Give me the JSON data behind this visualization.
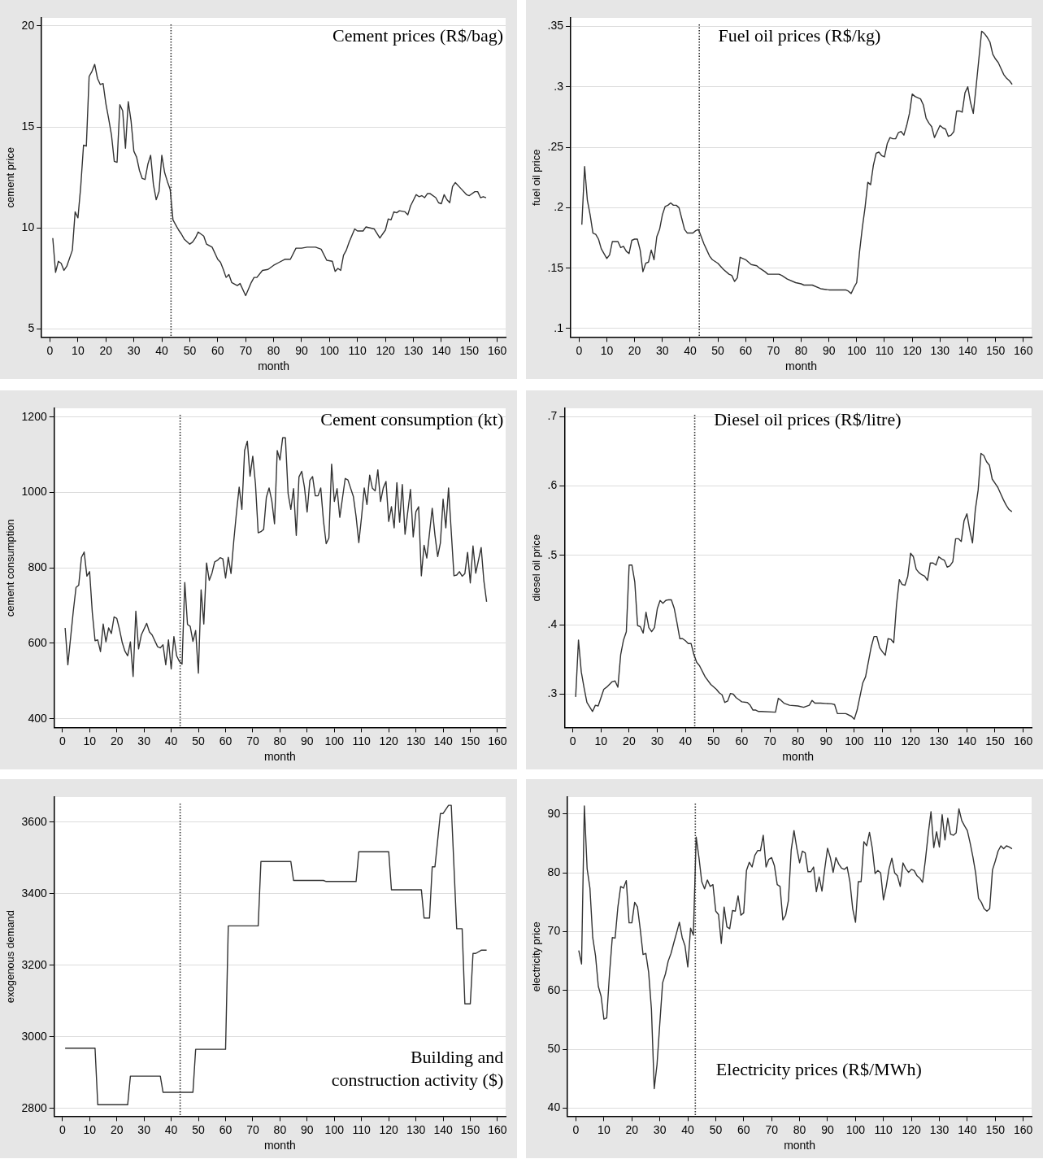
{
  "chart_data": [
    {
      "type": "line",
      "xlabel": "month",
      "ylabel": "cement price",
      "annotations": [
        "Cement prices (R$/bag)"
      ],
      "color": "#333333",
      "marker": "none",
      "grid": "y",
      "xlim": [
        -3,
        163
      ],
      "ylim": [
        4.6,
        20.4
      ],
      "xticks": [
        0,
        10,
        20,
        30,
        40,
        50,
        60,
        70,
        80,
        90,
        100,
        110,
        120,
        130,
        140,
        150,
        160
      ],
      "yticks": [
        5,
        10,
        15,
        20
      ],
      "ref_lines": [
        {
          "axis": "x",
          "value": 43.3,
          "line_style": "dotted"
        }
      ],
      "x": [
        1,
        2,
        3,
        4,
        5,
        6,
        8,
        9,
        10,
        11,
        12,
        13,
        14,
        15,
        16,
        17,
        18,
        19,
        20,
        21,
        22,
        23,
        24,
        25,
        26,
        27,
        28,
        29,
        30,
        31,
        32,
        33,
        34,
        35,
        36,
        37,
        38,
        39,
        40,
        41,
        42,
        43,
        44,
        45,
        46,
        47,
        48,
        50,
        51,
        52,
        53,
        55,
        56,
        58,
        60,
        61,
        62,
        63,
        64,
        65,
        67,
        68,
        70,
        72,
        73,
        74,
        76,
        78,
        80,
        82,
        84,
        86,
        88,
        90,
        92,
        95,
        97,
        99,
        101,
        102,
        103,
        104,
        105,
        106,
        107,
        109,
        110,
        112,
        113,
        116,
        118,
        120,
        121,
        122,
        123,
        124,
        125,
        127,
        128,
        129,
        131,
        132,
        133,
        134,
        135,
        136,
        138,
        139,
        140,
        141,
        142,
        143,
        144,
        145,
        147,
        149,
        150,
        152,
        153,
        154,
        155,
        156
      ],
      "values": [
        9.5,
        7.8,
        8.35,
        8.25,
        7.9,
        8.1,
        8.9,
        10.8,
        10.5,
        12.05,
        14.1,
        14.05,
        17.5,
        17.75,
        18.1,
        17.4,
        17.1,
        17.15,
        16.15,
        15.4,
        14.6,
        13.3,
        13.25,
        16.1,
        15.8,
        13.95,
        16.25,
        15.3,
        13.8,
        13.5,
        12.85,
        12.45,
        12.4,
        13.15,
        13.6,
        12.15,
        11.4,
        11.8,
        13.6,
        12.75,
        12.3,
        11.9,
        10.4,
        10.15,
        9.9,
        9.7,
        9.45,
        9.2,
        9.3,
        9.5,
        9.8,
        9.6,
        9.2,
        9.05,
        8.45,
        8.3,
        7.95,
        7.55,
        7.7,
        7.3,
        7.15,
        7.25,
        6.65,
        7.3,
        7.55,
        7.55,
        7.9,
        7.95,
        8.15,
        8.3,
        8.45,
        8.45,
        9.0,
        9.0,
        9.05,
        9.05,
        8.95,
        8.4,
        8.35,
        7.85,
        8.0,
        7.9,
        8.65,
        8.9,
        9.3,
        9.95,
        9.85,
        9.85,
        10.05,
        9.95,
        9.5,
        9.9,
        10.45,
        10.4,
        10.8,
        10.75,
        10.85,
        10.8,
        10.65,
        11.1,
        11.65,
        11.55,
        11.6,
        11.5,
        11.7,
        11.7,
        11.5,
        11.25,
        11.2,
        11.65,
        11.4,
        11.25,
        12.05,
        12.25,
        11.95,
        11.65,
        11.6,
        11.8,
        11.8,
        11.5,
        11.55,
        11.5
      ]
    },
    {
      "type": "line",
      "xlabel": "month",
      "ylabel": "fuel oil price",
      "annotations": [
        "Fuel oil prices (R$/kg)"
      ],
      "color": "#333333",
      "marker": "none",
      "grid": "y",
      "xlim": [
        -3,
        163
      ],
      "ylim": [
        0.093,
        0.357
      ],
      "xticks": [
        0,
        10,
        20,
        30,
        40,
        50,
        60,
        70,
        80,
        90,
        100,
        110,
        120,
        130,
        140,
        150,
        160
      ],
      "yticks": [
        {
          "value": 0.1,
          "label": ".1"
        },
        {
          "value": 0.15,
          "label": ".15"
        },
        {
          "value": 0.2,
          "label": ".2"
        },
        {
          "value": 0.25,
          "label": ".25"
        },
        {
          "value": 0.3,
          "label": ".3"
        },
        {
          "value": 0.35,
          "label": ".35"
        }
      ],
      "ref_lines": [
        {
          "axis": "x",
          "value": 43.3,
          "line_style": "dotted"
        }
      ],
      "x": [
        1,
        2,
        3,
        4,
        5,
        6,
        7,
        8,
        9,
        10,
        11,
        12,
        13,
        14,
        15,
        16,
        17,
        18,
        19,
        20,
        21,
        22,
        23,
        24,
        25,
        26,
        27,
        28,
        29,
        30,
        31,
        32,
        33,
        34,
        35,
        36,
        37,
        38,
        39,
        40,
        41,
        42,
        43,
        44,
        45,
        46,
        47,
        48,
        50,
        52,
        54,
        55,
        56,
        57,
        58,
        59,
        60,
        61,
        62,
        64,
        65,
        67,
        68,
        72,
        73,
        75,
        78,
        80,
        81,
        84,
        87,
        90,
        95,
        96,
        97,
        98,
        99,
        100,
        101,
        102,
        103,
        104,
        105,
        106,
        107,
        108,
        109,
        110,
        111,
        112,
        113,
        114,
        115,
        116,
        117,
        118,
        119,
        120,
        121,
        122,
        123,
        124,
        125,
        126,
        127,
        128,
        129,
        130,
        131,
        132,
        133,
        134,
        135,
        136,
        137,
        138,
        139,
        140,
        141,
        142,
        143,
        144,
        145,
        146,
        147,
        148,
        149,
        150,
        151,
        152,
        153,
        154,
        155,
        156
      ],
      "values": [
        0.186,
        0.234,
        0.206,
        0.194,
        0.179,
        0.178,
        0.174,
        0.166,
        0.162,
        0.158,
        0.161,
        0.172,
        0.172,
        0.172,
        0.167,
        0.168,
        0.164,
        0.162,
        0.173,
        0.174,
        0.174,
        0.165,
        0.147,
        0.154,
        0.155,
        0.165,
        0.157,
        0.176,
        0.182,
        0.194,
        0.201,
        0.202,
        0.204,
        0.202,
        0.202,
        0.2,
        0.191,
        0.182,
        0.179,
        0.179,
        0.179,
        0.181,
        0.182,
        0.176,
        0.17,
        0.165,
        0.16,
        0.157,
        0.154,
        0.149,
        0.145,
        0.144,
        0.139,
        0.142,
        0.159,
        0.158,
        0.157,
        0.155,
        0.153,
        0.152,
        0.15,
        0.147,
        0.145,
        0.145,
        0.144,
        0.141,
        0.138,
        0.137,
        0.136,
        0.136,
        0.133,
        0.132,
        0.132,
        0.132,
        0.131,
        0.129,
        0.134,
        0.138,
        0.163,
        0.183,
        0.2,
        0.221,
        0.219,
        0.235,
        0.245,
        0.246,
        0.243,
        0.242,
        0.253,
        0.258,
        0.257,
        0.257,
        0.262,
        0.263,
        0.26,
        0.268,
        0.278,
        0.294,
        0.292,
        0.291,
        0.29,
        0.285,
        0.274,
        0.27,
        0.267,
        0.258,
        0.263,
        0.268,
        0.266,
        0.265,
        0.259,
        0.26,
        0.263,
        0.28,
        0.28,
        0.279,
        0.295,
        0.3,
        0.287,
        0.278,
        0.3,
        0.323,
        0.346,
        0.344,
        0.341,
        0.337,
        0.327,
        0.323,
        0.32,
        0.315,
        0.31,
        0.307,
        0.305,
        0.302
      ]
    },
    {
      "type": "line",
      "xlabel": "month",
      "ylabel": "cement consumption",
      "annotations": [
        "Cement consumption (kt)"
      ],
      "color": "#333333",
      "marker": "none",
      "grid": "y",
      "xlim": [
        -3,
        163
      ],
      "ylim": [
        377,
        1223
      ],
      "xticks": [
        0,
        10,
        20,
        30,
        40,
        50,
        60,
        70,
        80,
        90,
        100,
        110,
        120,
        130,
        140,
        150,
        160
      ],
      "yticks": [
        400,
        600,
        800,
        1000,
        1200
      ],
      "ref_lines": [
        {
          "axis": "x",
          "value": 43.3,
          "line_style": "dotted"
        }
      ],
      "x": [
        1,
        2,
        4,
        5,
        6,
        7,
        8,
        9,
        10,
        11,
        12,
        13,
        14,
        15,
        16,
        17,
        18,
        19,
        20,
        21,
        22,
        23,
        24,
        25,
        26,
        27,
        28,
        29,
        31,
        32,
        33,
        35,
        36,
        37,
        38,
        39,
        40,
        41,
        42,
        43,
        44,
        45,
        46,
        47,
        48,
        49,
        50,
        51,
        52,
        53,
        54,
        55,
        56,
        57,
        58,
        59,
        60,
        61,
        62,
        63,
        64,
        65,
        66,
        67,
        68,
        69,
        70,
        71,
        72,
        73,
        74,
        75,
        76,
        77,
        78,
        79,
        80,
        81,
        82,
        83,
        84,
        85,
        86,
        87,
        88,
        89,
        90,
        91,
        92,
        93,
        94,
        95,
        96,
        97,
        98,
        99,
        100,
        101,
        102,
        104,
        105,
        107,
        108,
        109,
        110,
        111,
        112,
        113,
        114,
        115,
        116,
        117,
        118,
        119,
        120,
        121,
        122,
        123,
        124,
        125,
        126,
        128,
        129,
        130,
        131,
        132,
        133,
        134,
        136,
        137,
        138,
        139,
        140,
        141,
        142,
        144,
        145,
        146,
        147,
        148,
        149,
        150,
        151,
        152,
        154,
        155,
        156
      ],
      "values": [
        641,
        543,
        685,
        748,
        754,
        828,
        842,
        778,
        790,
        681,
        607,
        609,
        578,
        651,
        604,
        641,
        626,
        670,
        666,
        637,
        602,
        579,
        567,
        604,
        512,
        685,
        585,
        622,
        653,
        630,
        622,
        591,
        588,
        596,
        543,
        609,
        532,
        618,
        567,
        552,
        545,
        761,
        650,
        645,
        605,
        634,
        521,
        742,
        651,
        813,
        767,
        786,
        816,
        820,
        827,
        824,
        773,
        828,
        785,
        870,
        946,
        1014,
        955,
        1111,
        1136,
        1043,
        1096,
        1022,
        893,
        896,
        902,
        987,
        1012,
        978,
        917,
        1111,
        1086,
        1145,
        1145,
        997,
        955,
        1010,
        886,
        1041,
        1056,
        1014,
        948,
        1032,
        1042,
        991,
        991,
        1012,
        925,
        864,
        879,
        1075,
        976,
        1010,
        934,
        1037,
        1033,
        989,
        936,
        867,
        934,
        1012,
        968,
        1046,
        1011,
        1004,
        1060,
        976,
        1012,
        1029,
        923,
        962,
        906,
        1026,
        921,
        1021,
        889,
        1008,
        882,
        949,
        962,
        779,
        860,
        826,
        958,
        887,
        830,
        866,
        982,
        906,
        1012,
        779,
        781,
        790,
        778,
        785,
        841,
        760,
        858,
        786,
        854,
        765,
        710
      ]
    },
    {
      "type": "line",
      "xlabel": "month",
      "ylabel": "diesel oil price",
      "annotations": [
        "Diesel oil prices (R$/litre)"
      ],
      "color": "#333333",
      "marker": "none",
      "grid": "y",
      "xlim": [
        -3,
        163
      ],
      "ylim": [
        0.252,
        0.712
      ],
      "xticks": [
        0,
        10,
        20,
        30,
        40,
        50,
        60,
        70,
        80,
        90,
        100,
        110,
        120,
        130,
        140,
        150,
        160
      ],
      "yticks": [
        {
          "value": 0.3,
          "label": ".3"
        },
        {
          "value": 0.4,
          "label": ".4"
        },
        {
          "value": 0.5,
          "label": ".5"
        },
        {
          "value": 0.6,
          "label": ".6"
        },
        {
          "value": 0.7,
          "label": ".7"
        }
      ],
      "ref_lines": [
        {
          "axis": "x",
          "value": 43.3,
          "line_style": "dotted"
        }
      ],
      "x": [
        1,
        2,
        3,
        4,
        5,
        7,
        8,
        9,
        11,
        12,
        14,
        15,
        16,
        17,
        18,
        19,
        20,
        21,
        22,
        23,
        24,
        25,
        26,
        27,
        28,
        29,
        30,
        31,
        32,
        33,
        34,
        35,
        36,
        37,
        38,
        39,
        40,
        41,
        42,
        43,
        44,
        45,
        47,
        49,
        51,
        52,
        53,
        54,
        55,
        56,
        57,
        58,
        59,
        60,
        62,
        63,
        64,
        65,
        66,
        67,
        72,
        73,
        74,
        75,
        77,
        80,
        82,
        84,
        85,
        86,
        88,
        92,
        93,
        94,
        97,
        99,
        100,
        101,
        103,
        104,
        106,
        107,
        108,
        109,
        110,
        111,
        112,
        113,
        114,
        115,
        116,
        117,
        118,
        119,
        120,
        121,
        122,
        123,
        124,
        125,
        126,
        127,
        128,
        129,
        130,
        131,
        132,
        133,
        134,
        135,
        136,
        137,
        138,
        139,
        140,
        141,
        142,
        143,
        144,
        145,
        146,
        147,
        148,
        149,
        150,
        151,
        152,
        153,
        154,
        155,
        156
      ],
      "values": [
        0.296,
        0.378,
        0.332,
        0.309,
        0.288,
        0.275,
        0.284,
        0.283,
        0.307,
        0.31,
        0.318,
        0.319,
        0.31,
        0.357,
        0.378,
        0.39,
        0.486,
        0.486,
        0.462,
        0.399,
        0.397,
        0.388,
        0.418,
        0.396,
        0.39,
        0.396,
        0.423,
        0.435,
        0.431,
        0.435,
        0.436,
        0.436,
        0.424,
        0.403,
        0.38,
        0.38,
        0.377,
        0.373,
        0.373,
        0.357,
        0.346,
        0.341,
        0.325,
        0.314,
        0.307,
        0.302,
        0.299,
        0.288,
        0.29,
        0.301,
        0.3,
        0.295,
        0.292,
        0.289,
        0.288,
        0.284,
        0.277,
        0.277,
        0.275,
        0.275,
        0.274,
        0.294,
        0.291,
        0.287,
        0.284,
        0.283,
        0.281,
        0.284,
        0.291,
        0.287,
        0.287,
        0.286,
        0.285,
        0.272,
        0.272,
        0.268,
        0.264,
        0.277,
        0.316,
        0.325,
        0.368,
        0.383,
        0.383,
        0.367,
        0.361,
        0.356,
        0.38,
        0.379,
        0.374,
        0.429,
        0.465,
        0.458,
        0.457,
        0.47,
        0.503,
        0.498,
        0.48,
        0.475,
        0.472,
        0.47,
        0.464,
        0.489,
        0.489,
        0.486,
        0.498,
        0.495,
        0.493,
        0.483,
        0.485,
        0.491,
        0.524,
        0.524,
        0.52,
        0.55,
        0.56,
        0.537,
        0.518,
        0.566,
        0.594,
        0.647,
        0.644,
        0.635,
        0.63,
        0.61,
        0.604,
        0.598,
        0.589,
        0.58,
        0.572,
        0.566,
        0.563
      ]
    },
    {
      "type": "line",
      "xlabel": "month",
      "ylabel": "exogenous demand",
      "annotations": [
        "Building and construction activity ($)"
      ],
      "color": "#333333",
      "marker": "none",
      "grid": "y",
      "xlim": [
        -3,
        163
      ],
      "ylim": [
        2778,
        3670
      ],
      "xticks": [
        0,
        10,
        20,
        30,
        40,
        50,
        60,
        70,
        80,
        90,
        100,
        110,
        120,
        130,
        140,
        150,
        160
      ],
      "yticks": [
        2800,
        3000,
        3200,
        3400,
        3600
      ],
      "ref_lines": [
        {
          "axis": "x",
          "value": 43.3,
          "line_style": "dotted"
        }
      ],
      "x": [
        1,
        12,
        13,
        24,
        25,
        36,
        37,
        48,
        49,
        60,
        61,
        72,
        73,
        84,
        85,
        96,
        97,
        108,
        109,
        120,
        121,
        132,
        133,
        135,
        136,
        137,
        139,
        140,
        142,
        143,
        145,
        147,
        148,
        150,
        151,
        152,
        154,
        156
      ],
      "values": [
        2968,
        2968,
        2810,
        2810,
        2890,
        2890,
        2845,
        2845,
        2965,
        2965,
        3310,
        3310,
        3490,
        3490,
        3437,
        3437,
        3434,
        3434,
        3517,
        3517,
        3411,
        3411,
        3332,
        3332,
        3475,
        3475,
        3624,
        3624,
        3647,
        3647,
        3302,
        3302,
        3092,
        3092,
        3233,
        3233,
        3242,
        3242
      ]
    },
    {
      "type": "line",
      "xlabel": "month",
      "ylabel": "electricity price",
      "annotations": [
        "Electricity prices (R$/MWh)"
      ],
      "color": "#333333",
      "marker": "none",
      "grid": "y",
      "xlim": [
        -3,
        163
      ],
      "ylim": [
        38.6,
        92.9
      ],
      "xticks": [
        0,
        10,
        20,
        30,
        40,
        50,
        60,
        70,
        80,
        90,
        100,
        110,
        120,
        130,
        140,
        150,
        160
      ],
      "yticks": [
        40,
        50,
        60,
        70,
        80,
        90
      ],
      "ref_lines": [
        {
          "axis": "x",
          "value": 42.7,
          "line_style": "dotted"
        }
      ],
      "x": [
        1,
        2,
        3,
        4,
        5,
        6,
        7,
        8,
        9,
        10,
        11,
        12,
        13,
        14,
        15,
        16,
        17,
        18,
        19,
        20,
        21,
        22,
        23,
        24,
        25,
        26,
        27,
        28,
        29,
        30,
        31,
        32,
        33,
        34,
        35,
        36,
        37,
        38,
        39,
        40,
        41,
        42,
        43,
        44,
        45,
        46,
        47,
        48,
        49,
        50,
        51,
        52,
        53,
        54,
        55,
        56,
        57,
        58,
        59,
        60,
        61,
        62,
        63,
        64,
        65,
        66,
        67,
        68,
        69,
        70,
        71,
        72,
        73,
        74,
        75,
        76,
        77,
        78,
        79,
        80,
        81,
        82,
        83,
        84,
        85,
        86,
        87,
        88,
        89,
        90,
        91,
        92,
        93,
        94,
        95,
        96,
        97,
        98,
        99,
        100,
        101,
        102,
        103,
        104,
        105,
        106,
        107,
        108,
        109,
        110,
        111,
        112,
        113,
        114,
        115,
        116,
        117,
        118,
        119,
        120,
        121,
        122,
        123,
        124,
        125,
        126,
        127,
        128,
        129,
        130,
        131,
        132,
        133,
        134,
        135,
        136,
        137,
        138,
        139,
        140,
        141,
        142,
        143,
        144,
        145,
        146,
        147,
        148,
        149,
        150,
        151,
        152,
        153,
        154,
        155,
        156
      ],
      "values": [
        66.8,
        64.5,
        91.4,
        80.7,
        77.4,
        69.0,
        65.9,
        60.7,
        59.0,
        55.1,
        55.3,
        62.8,
        69.0,
        68.9,
        74.2,
        77.7,
        77.4,
        78.7,
        71.5,
        71.5,
        75.0,
        74.2,
        70.4,
        66.1,
        66.3,
        63.1,
        56.8,
        43.3,
        47.4,
        54.4,
        61.3,
        62.8,
        65.0,
        66.3,
        68.1,
        69.8,
        71.6,
        69.0,
        67.6,
        64.0,
        70.6,
        69.4,
        86.1,
        82.6,
        78.5,
        77.3,
        78.8,
        77.7,
        78.0,
        73.5,
        72.9,
        68.0,
        74.2,
        70.8,
        70.5,
        73.6,
        73.5,
        76.1,
        72.8,
        73.2,
        80.4,
        81.8,
        81.0,
        83.0,
        83.8,
        83.8,
        86.4,
        81.0,
        82.3,
        82.6,
        81.2,
        78.0,
        77.7,
        72.0,
        72.8,
        75.3,
        83.9,
        87.2,
        84.2,
        81.7,
        83.7,
        83.4,
        80.2,
        80.2,
        81.0,
        76.8,
        79.3,
        76.9,
        80.7,
        84.2,
        82.6,
        80.1,
        82.6,
        81.5,
        80.8,
        80.6,
        81.0,
        78.5,
        73.9,
        71.6,
        78.5,
        78.5,
        85.3,
        84.6,
        86.9,
        84.2,
        79.9,
        80.4,
        80.0,
        75.4,
        77.7,
        80.7,
        82.5,
        80.0,
        79.5,
        77.7,
        81.7,
        80.7,
        80.1,
        80.6,
        80.4,
        79.5,
        79.1,
        78.4,
        82.2,
        86.6,
        90.4,
        84.3,
        87.0,
        84.4,
        89.9,
        85.6,
        89.3,
        86.6,
        86.4,
        86.8,
        90.9,
        88.9,
        88.0,
        87.2,
        85.1,
        82.7,
        79.9,
        75.7,
        75.0,
        73.9,
        73.5,
        73.9,
        80.5,
        82.0,
        83.7,
        84.6,
        84.1,
        84.6,
        84.4,
        84.1
      ]
    }
  ]
}
